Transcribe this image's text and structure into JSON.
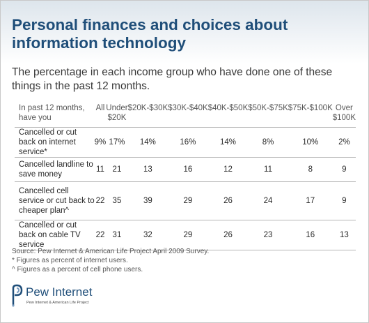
{
  "header": {
    "title": "Personal finances and choices about information technology",
    "subtitle": "The percentage in each income group who have done one of these things in the past 12 months."
  },
  "chart_data": {
    "type": "table",
    "row_header": "In past 12 months, have you",
    "columns": [
      "All",
      "Under $20K",
      "$20K-$30K",
      "$30K-$40K",
      "$40K-$50K",
      "$50K-$75K",
      "$75K-$100K",
      "Over $100K"
    ],
    "rows": [
      {
        "label": "Cancelled or cut back on internet service*",
        "values": [
          "9%",
          "17%",
          "14%",
          "16%",
          "14%",
          "8%",
          "10%",
          "2%"
        ]
      },
      {
        "label": "Cancelled landline to save money",
        "values": [
          "11",
          "21",
          "13",
          "16",
          "12",
          "11",
          "8",
          "9"
        ]
      },
      {
        "label": "Cancelled cell service or cut back to cheaper plan^",
        "values": [
          "22",
          "35",
          "39",
          "29",
          "26",
          "24",
          "17",
          "9"
        ]
      },
      {
        "label": "Cancelled or cut back on cable TV service",
        "values": [
          "22",
          "31",
          "32",
          "29",
          "26",
          "23",
          "16",
          "13"
        ]
      }
    ]
  },
  "footer": {
    "source": "Source: Pew Internet & American Life Project April 2009 Survey.",
    "note1": "* Figures as percent of internet users.",
    "note2": "^ Figures as a percent of cell phone users."
  },
  "logo": {
    "name": "Pew Internet",
    "tagline": "Pew Internet & American Life Project"
  },
  "colors": {
    "title": "#1f4e79",
    "rule": "#b5b5b5"
  }
}
